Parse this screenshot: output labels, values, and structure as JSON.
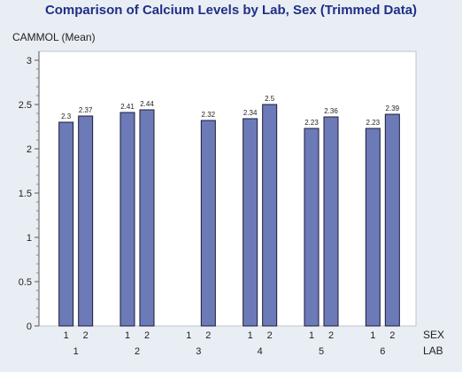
{
  "page": {
    "title": "Comparison of Calcium Levels by Lab, Sex (Trimmed Data)"
  },
  "colors": {
    "background": "#e9eef5",
    "plot_area": "#ffffff",
    "bar_fill": "#6d7ab8",
    "bar_stroke": "#1a1a3a",
    "title": "#1f2f86"
  },
  "chart_data": {
    "type": "bar",
    "title": "Comparison of Calcium Levels by Lab, Sex (Trimmed Data)",
    "ylabel": "CAMMOL (Mean)",
    "xlabel_inner": "SEX",
    "xlabel_outer": "LAB",
    "ylim": [
      0,
      3.1
    ],
    "yticks": [
      0,
      0.5,
      1,
      1.5,
      2,
      2.5,
      3
    ],
    "ytick_labels": [
      "0",
      "0.5",
      "1",
      "1.5",
      "2",
      "2.5",
      "3"
    ],
    "grid": false,
    "groups": [
      {
        "lab": "1",
        "bars": [
          {
            "sex": "1",
            "value": 2.3,
            "label": "2.3"
          },
          {
            "sex": "2",
            "value": 2.37,
            "label": "2.37"
          }
        ]
      },
      {
        "lab": "2",
        "bars": [
          {
            "sex": "1",
            "value": 2.41,
            "label": "2.41"
          },
          {
            "sex": "2",
            "value": 2.44,
            "label": "2.44"
          }
        ]
      },
      {
        "lab": "3",
        "bars": [
          {
            "sex": "1",
            "value": null,
            "label": ""
          },
          {
            "sex": "2",
            "value": 2.32,
            "label": "2.32"
          }
        ]
      },
      {
        "lab": "4",
        "bars": [
          {
            "sex": "1",
            "value": 2.34,
            "label": "2.34"
          },
          {
            "sex": "2",
            "value": 2.5,
            "label": "2.5"
          }
        ]
      },
      {
        "lab": "5",
        "bars": [
          {
            "sex": "1",
            "value": 2.23,
            "label": "2.23"
          },
          {
            "sex": "2",
            "value": 2.36,
            "label": "2.36"
          }
        ]
      },
      {
        "lab": "6",
        "bars": [
          {
            "sex": "1",
            "value": 2.23,
            "label": "2.23"
          },
          {
            "sex": "2",
            "value": 2.39,
            "label": "2.39"
          }
        ]
      }
    ]
  }
}
